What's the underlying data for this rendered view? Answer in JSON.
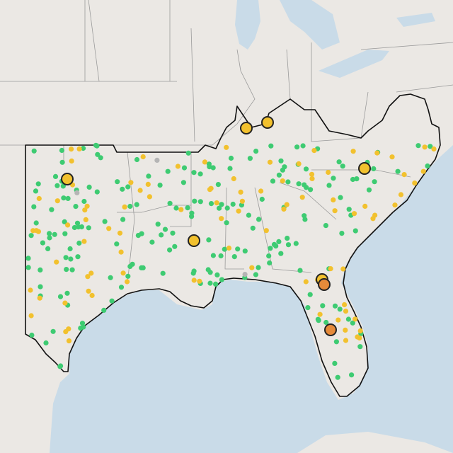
{
  "map": {
    "colors": {
      "water": "#c9dbe8",
      "land": "#ebe8e4",
      "state_lines": "#9a9a9a",
      "region_border": "#111111",
      "green": "#3ecb72",
      "yellow": "#f2c12e",
      "orange": "#e58a3a",
      "gray": "#b5b5b5"
    },
    "markers": {
      "large": [
        {
          "color": "yellow"
        },
        {
          "color": "yellow"
        },
        {
          "color": "yellow"
        },
        {
          "color": "yellow"
        },
        {
          "color": "yellow"
        },
        {
          "color": "yellow"
        },
        {
          "color": "orange"
        },
        {
          "color": "orange"
        }
      ],
      "small_counts": {
        "green": 210,
        "yellow": 95,
        "gray": 3
      }
    }
  }
}
